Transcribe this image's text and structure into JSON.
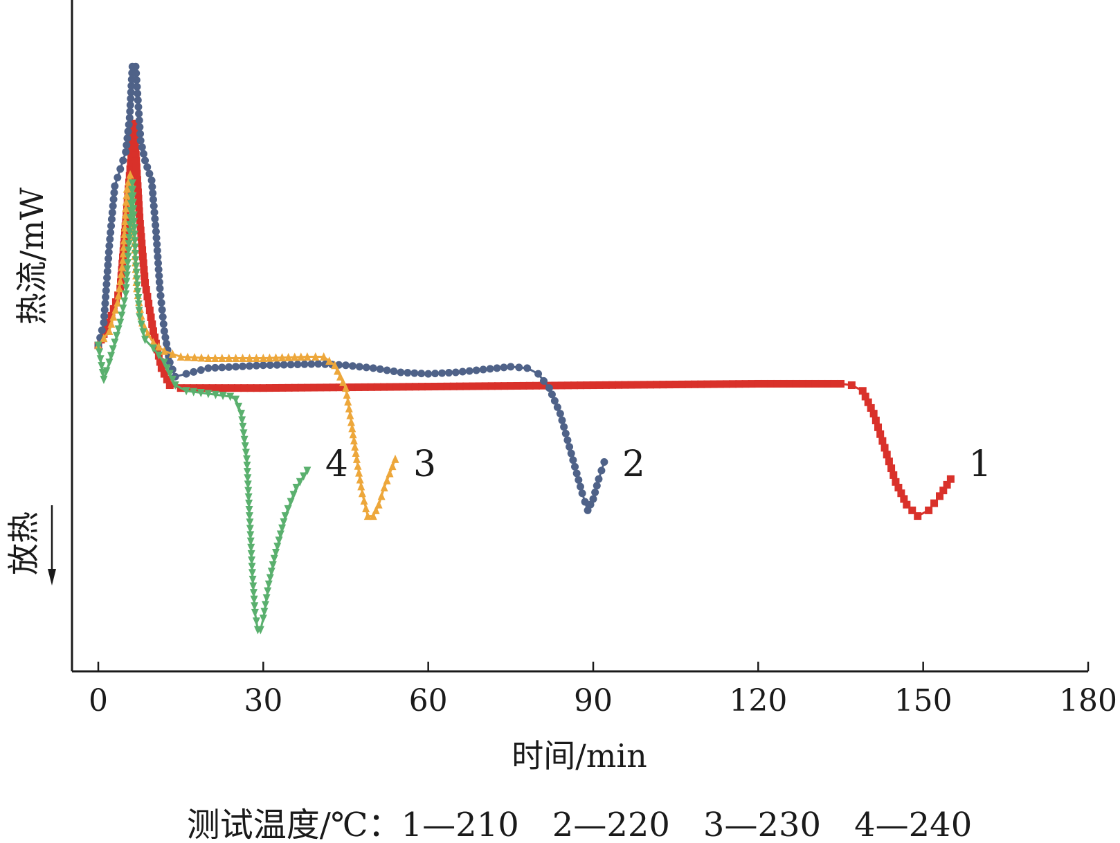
{
  "chart_data": {
    "type": "line",
    "xlabel": "时间/min",
    "ylabel": "热流/mW",
    "exo_label": "放热",
    "xlim": [
      0,
      180
    ],
    "ylim": [
      -100,
      100
    ],
    "x_ticks": [
      "0",
      "30",
      "60",
      "90",
      "120",
      "150",
      "180"
    ],
    "x_tick_values": [
      0,
      30,
      60,
      90,
      120,
      150,
      180
    ],
    "grid": false,
    "caption": "测试温度/℃：1—210　2—220　3—230　4—240",
    "series": [
      {
        "label": "1",
        "color": "#d9312a",
        "marker": "square",
        "points": [
          [
            0,
            0
          ],
          [
            2,
            8
          ],
          [
            4,
            20
          ],
          [
            5.5,
            55
          ],
          [
            6.5,
            78
          ],
          [
            7.5,
            45
          ],
          [
            8.5,
            22
          ],
          [
            10,
            5
          ],
          [
            11.5,
            -8
          ],
          [
            13,
            -14
          ],
          [
            15,
            -15
          ],
          [
            30,
            -15
          ],
          [
            60,
            -14.5
          ],
          [
            90,
            -14
          ],
          [
            120,
            -13.5
          ],
          [
            135,
            -13.5
          ],
          [
            137,
            -14
          ],
          [
            139,
            -16
          ],
          [
            141,
            -24
          ],
          [
            143,
            -36
          ],
          [
            145,
            -48
          ],
          [
            147,
            -56
          ],
          [
            149,
            -60
          ],
          [
            151,
            -58
          ],
          [
            153,
            -53
          ],
          [
            155,
            -47
          ]
        ]
      },
      {
        "label": "2",
        "color": "#4f6288",
        "marker": "circle",
        "points": [
          [
            0,
            0
          ],
          [
            1,
            8
          ],
          [
            2,
            35
          ],
          [
            3,
            56
          ],
          [
            4,
            62
          ],
          [
            5,
            68
          ],
          [
            5.7,
            80
          ],
          [
            6.2,
            98
          ],
          [
            6.8,
            98
          ],
          [
            7.7,
            72
          ],
          [
            8.5,
            65
          ],
          [
            9.7,
            58
          ],
          [
            10.5,
            40
          ],
          [
            11.2,
            20
          ],
          [
            12,
            5
          ],
          [
            13,
            -6
          ],
          [
            14,
            -11
          ],
          [
            16,
            -10
          ],
          [
            20,
            -8
          ],
          [
            30,
            -7
          ],
          [
            40,
            -6.5
          ],
          [
            45,
            -7
          ],
          [
            50,
            -8
          ],
          [
            55,
            -9.5
          ],
          [
            60,
            -10
          ],
          [
            65,
            -9.5
          ],
          [
            70,
            -8.5
          ],
          [
            75,
            -7.5
          ],
          [
            78,
            -8
          ],
          [
            80,
            -10
          ],
          [
            82,
            -15
          ],
          [
            84,
            -24
          ],
          [
            86,
            -38
          ],
          [
            88,
            -52
          ],
          [
            89,
            -58
          ],
          [
            90,
            -54
          ],
          [
            91,
            -47
          ],
          [
            92,
            -41
          ]
        ]
      },
      {
        "label": "3",
        "color": "#eda73b",
        "marker": "triangle-up",
        "points": [
          [
            0,
            0
          ],
          [
            2,
            5
          ],
          [
            3.5,
            15
          ],
          [
            4.5,
            30
          ],
          [
            5.2,
            55
          ],
          [
            5.8,
            60
          ],
          [
            6.3,
            45
          ],
          [
            7,
            20
          ],
          [
            8,
            8
          ],
          [
            9,
            4
          ],
          [
            10,
            1
          ],
          [
            12,
            -2
          ],
          [
            15,
            -4
          ],
          [
            20,
            -4.5
          ],
          [
            30,
            -4.5
          ],
          [
            38,
            -4
          ],
          [
            41,
            -4
          ],
          [
            43,
            -7
          ],
          [
            45,
            -15
          ],
          [
            46,
            -27
          ],
          [
            47,
            -40
          ],
          [
            48,
            -52
          ],
          [
            49,
            -60
          ],
          [
            50,
            -60
          ],
          [
            51,
            -56
          ],
          [
            52,
            -50
          ],
          [
            53,
            -45
          ],
          [
            54,
            -40
          ]
        ]
      },
      {
        "label": "4",
        "color": "#5ab06e",
        "marker": "triangle-down",
        "points": [
          [
            0,
            0
          ],
          [
            1,
            -12
          ],
          [
            2,
            -6
          ],
          [
            3,
            1
          ],
          [
            4,
            8
          ],
          [
            5,
            18
          ],
          [
            5.7,
            40
          ],
          [
            6.2,
            57
          ],
          [
            6.8,
            30
          ],
          [
            7.5,
            10
          ],
          [
            8.5,
            2
          ],
          [
            10,
            -1
          ],
          [
            12,
            -6
          ],
          [
            14,
            -14
          ],
          [
            16,
            -16
          ],
          [
            20,
            -17
          ],
          [
            24,
            -18
          ],
          [
            25,
            -19
          ],
          [
            26,
            -24
          ],
          [
            27,
            -40
          ],
          [
            27.5,
            -60
          ],
          [
            28,
            -80
          ],
          [
            28.5,
            -94
          ],
          [
            29,
            -100
          ],
          [
            29.5,
            -100
          ],
          [
            30,
            -96
          ],
          [
            31,
            -84
          ],
          [
            32,
            -75
          ],
          [
            34,
            -60
          ],
          [
            36,
            -50
          ],
          [
            38,
            -44
          ]
        ]
      }
    ]
  }
}
